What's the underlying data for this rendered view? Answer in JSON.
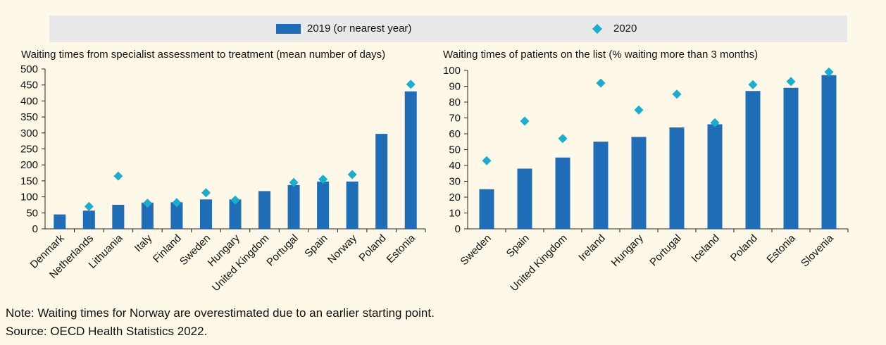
{
  "legend": {
    "bar_label": "2019 (or nearest year)",
    "marker_label": "2020"
  },
  "colors": {
    "bar": "#1f6cb7",
    "marker": "#19aed0",
    "background": "#fdf8e8",
    "legend_bg": "#e9e9e9"
  },
  "chart_data": [
    {
      "type": "bar",
      "title": "Waiting times from specialist assessment to treatment (mean number of days)",
      "categories": [
        "Denmark",
        "Netherlands",
        "Lithuania",
        "Italy",
        "Finland",
        "Sweden",
        "Hungary",
        "United Kingdom",
        "Portugal",
        "Spain",
        "Norway",
        "Poland",
        "Estonia"
      ],
      "series": [
        {
          "name": "2019 (or nearest year)",
          "type": "bar",
          "values": [
            45,
            57,
            75,
            82,
            83,
            92,
            92,
            118,
            137,
            148,
            148,
            297,
            430
          ]
        },
        {
          "name": "2020",
          "type": "scatter",
          "values": [
            null,
            70,
            165,
            80,
            82,
            113,
            90,
            null,
            145,
            155,
            170,
            null,
            452
          ]
        }
      ],
      "ylim": [
        0,
        500
      ],
      "yticks": [
        0,
        50,
        100,
        150,
        200,
        250,
        300,
        350,
        400,
        450,
        500
      ]
    },
    {
      "type": "bar",
      "title": "Waiting times of patients on the list (% waiting more than 3 months)",
      "categories": [
        "Sweden",
        "Spain",
        "United Kingdom",
        "Ireland",
        "Hungary",
        "Portugal",
        "Iceland",
        "Poland",
        "Estonia",
        "Slovenia"
      ],
      "series": [
        {
          "name": "2019 (or nearest year)",
          "type": "bar",
          "values": [
            25,
            38,
            45,
            55,
            58,
            64,
            66,
            87,
            89,
            97
          ]
        },
        {
          "name": "2020",
          "type": "scatter",
          "values": [
            43,
            68,
            57,
            92,
            75,
            85,
            67,
            91,
            93,
            99
          ]
        }
      ],
      "ylim": [
        0,
        100
      ],
      "yticks": [
        0,
        10,
        20,
        30,
        40,
        50,
        60,
        70,
        80,
        90,
        100
      ]
    }
  ],
  "notes": {
    "note": "Note: Waiting times for Norway are overestimated due to an earlier starting point.",
    "source": "Source: OECD Health Statistics 2022."
  }
}
